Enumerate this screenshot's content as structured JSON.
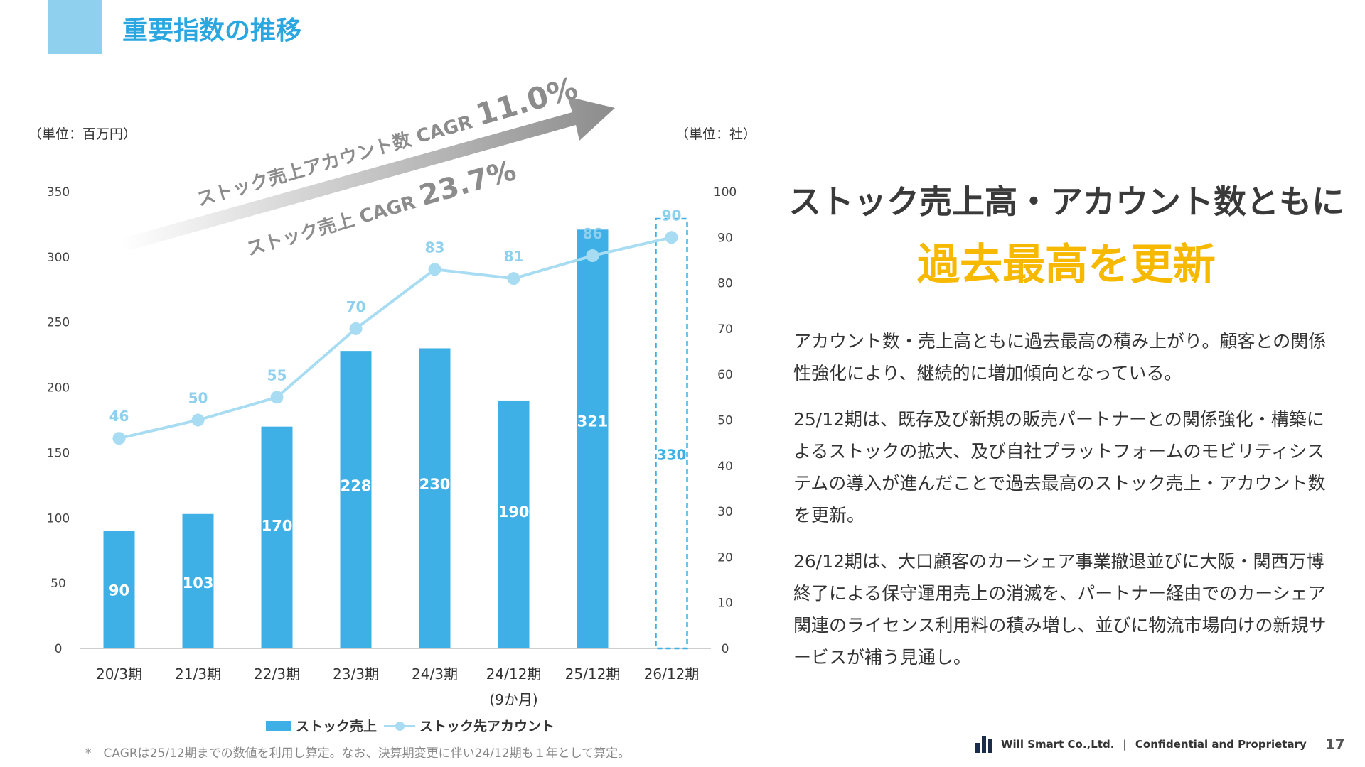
{
  "page": {
    "title": "重要指数の推移",
    "page_number": "17"
  },
  "chart_data": {
    "type": "bar",
    "categories": [
      "20/3期",
      "21/3期",
      "22/3期",
      "23/3期",
      "24/3期",
      "24/12期",
      "25/12期",
      "26/12期"
    ],
    "category_sublabels": [
      "",
      "",
      "",
      "",
      "",
      "(9か月)",
      "",
      ""
    ],
    "series": [
      {
        "name": "ストック売上",
        "type": "bar",
        "axis": "left",
        "values": [
          90,
          103,
          170,
          228,
          230,
          190,
          321,
          330
        ],
        "forecast": [
          false,
          false,
          false,
          false,
          false,
          false,
          false,
          true
        ]
      },
      {
        "name": "ストック先アカウント",
        "type": "line",
        "axis": "right",
        "values": [
          46,
          50,
          55,
          70,
          83,
          81,
          86,
          90
        ]
      }
    ],
    "y_left": {
      "unit_label": "（単位：百万円）",
      "range": [
        0,
        350
      ],
      "ticks": [
        0,
        50,
        100,
        150,
        200,
        250,
        300,
        350
      ]
    },
    "y_right": {
      "unit_label": "（単位：社）",
      "range": [
        0,
        100
      ],
      "ticks": [
        0,
        10,
        20,
        30,
        40,
        50,
        60,
        70,
        80,
        90,
        100
      ]
    },
    "legend": {
      "placement": "bottom",
      "bar_label": "ストック売上",
      "line_label": "ストック先アカウント"
    },
    "annotations": [
      {
        "label": "ストック売上アカウント数 CAGR",
        "value": "11.0%"
      },
      {
        "label": "ストック売上 CAGR",
        "value": "23.7%"
      }
    ],
    "grid": false,
    "colors": {
      "bar": "#3fb0e5",
      "line": "#a8dcf3",
      "bar_label": "#ffffff",
      "line_label": "#8fd0ee",
      "forecast": "#3fb0e5"
    }
  },
  "footnote": "*　CAGRは25/12期までの数値を利用し算定。なお、決算期変更に伴い24/12期も１年として算定。",
  "headline": {
    "line1": "ストック売上高・アカウント数ともに",
    "line2": "過去最高を更新"
  },
  "body": {
    "paragraphs": [
      "アカウント数・売上高ともに過去最高の積み上がり。顧客との関係性強化により、継続的に増加傾向となっている。",
      "25/12期は、既存及び新規の販売パートナーとの関係強化・構築によるストックの拡大、及び自社プラットフォームのモビリティシステムの導入が進んだことで過去最高のストック売上・アカウント数を更新。",
      "26/12期は、大口顧客のカーシェア事業撤退並びに大阪・関西万博終了による保守運用売上の消滅を、パートナー経由でのカーシェア関連のライセンス利用料の積み増し、並びに物流市場向けの新規サービスが補う見通し。"
    ]
  },
  "footer": {
    "company": "Will Smart Co.,Ltd.",
    "separator": "|",
    "confidential": "Confidential and Proprietary"
  }
}
